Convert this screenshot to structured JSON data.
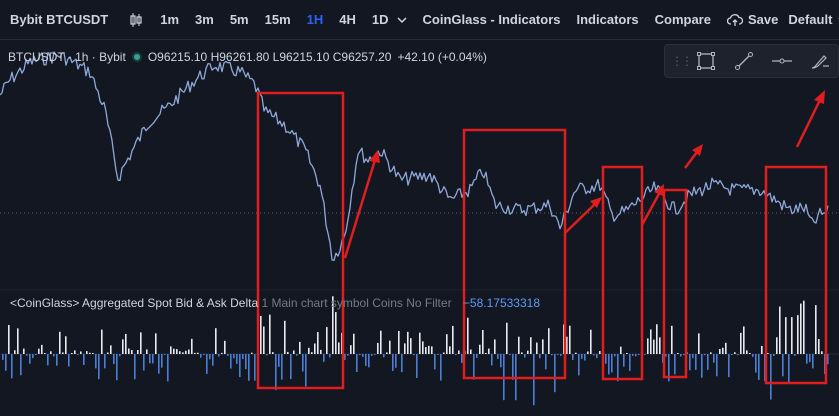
{
  "toolbar": {
    "symbol": "Bybit BTCUSDT",
    "chart_type_icon": "candles-icon",
    "intervals": [
      "1m",
      "3m",
      "5m",
      "15m",
      "1H",
      "4H",
      "1D"
    ],
    "active_interval": "1H",
    "indicator_script": "CoinGlass - Indicators",
    "indicators_label": "Indicators",
    "compare_label": "Compare",
    "save_label": "Save",
    "layout_label": "Default"
  },
  "legend": {
    "title": "BTCUSDT · 1h · Bybit",
    "o_label": "O",
    "o": "96215.10",
    "h_label": "H",
    "h": "96261.80",
    "l_label": "L",
    "l": "96215.10",
    "c_label": "C",
    "c": "96257.20",
    "change": "+42.10 (+0.04%)"
  },
  "indicator": {
    "name": "<CoinGlass> Aggregated Spot Bid & Ask Delta",
    "params": "1 Main chart symbol Coins No Filter",
    "value": "−58.17533318"
  },
  "colors": {
    "background": "#131722",
    "price_line": "#8fa8d9",
    "bid_bar": "#e8eaf0",
    "ask_bar": "#4a7fd4",
    "annotation": "#e01e1e"
  },
  "drawing_tools": [
    "rectangle-icon",
    "trendline-icon",
    "horizontal-line-icon",
    "brush-icon"
  ]
}
